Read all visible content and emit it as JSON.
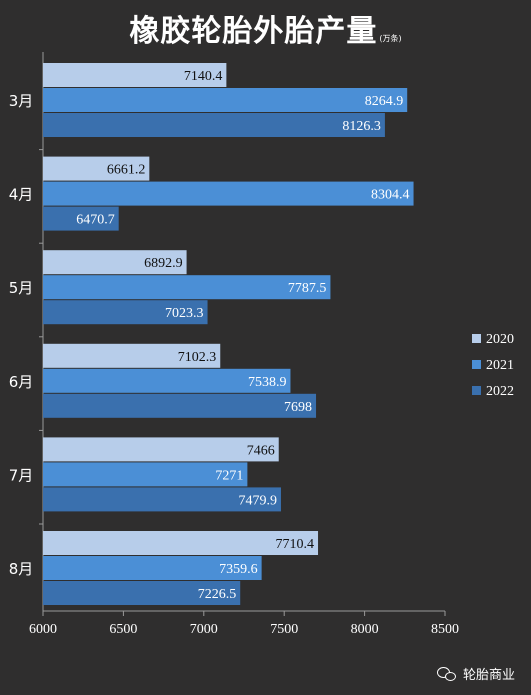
{
  "title": "橡胶轮胎外胎产量",
  "unit": "(万条)",
  "watermark": "轮胎商业",
  "chart_data": {
    "type": "bar",
    "orientation": "horizontal",
    "categories": [
      "3月",
      "4月",
      "5月",
      "6月",
      "7月",
      "8月"
    ],
    "series": [
      {
        "name": "2020",
        "color": "#b7cdea",
        "values": [
          7140.4,
          6661.2,
          6892.9,
          7102.3,
          7466,
          7710.4
        ]
      },
      {
        "name": "2021",
        "color": "#4b8fd6",
        "values": [
          8264.9,
          8304.4,
          7787.5,
          7538.9,
          7271,
          7359.6
        ]
      },
      {
        "name": "2022",
        "color": "#3a70ae",
        "values": [
          8126.3,
          6470.7,
          7023.3,
          7698,
          7479.9,
          7226.5
        ]
      }
    ],
    "value_labels": [
      [
        "7140.4",
        "8264.9",
        "8126.3"
      ],
      [
        "6661.2",
        "8304.4",
        "6470.7"
      ],
      [
        "6892.9",
        "7787.5",
        "7023.3"
      ],
      [
        "7102.3",
        "7538.9",
        "7698"
      ],
      [
        "7466",
        "7271",
        "7479.9"
      ],
      [
        "7710.4",
        "7359.6",
        "7226.5"
      ]
    ],
    "xlim": [
      6000,
      8500
    ],
    "xticks": [
      "6000",
      "6500",
      "7000",
      "7500",
      "8000",
      "8500"
    ],
    "grid": false,
    "legend_position": "right"
  }
}
